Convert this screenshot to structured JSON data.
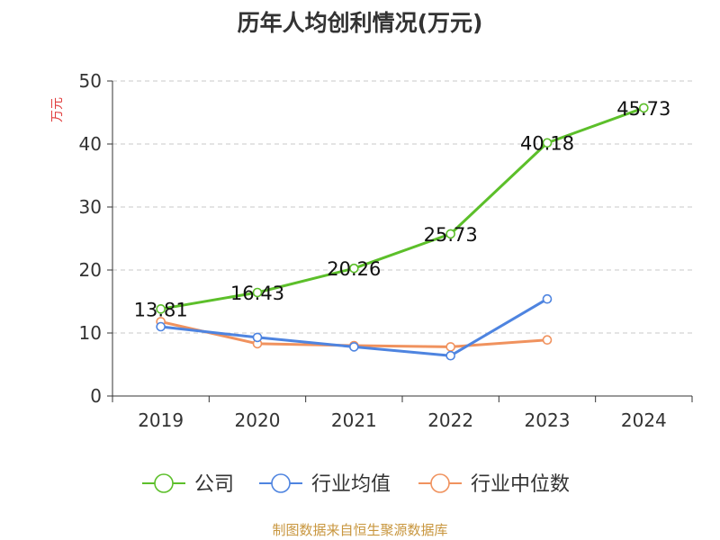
{
  "chart_data": {
    "type": "line",
    "title": "历年人均创利情况(万元)",
    "ylabel": "万元",
    "xlabel": "",
    "categories": [
      "2019",
      "2020",
      "2021",
      "2022",
      "2023",
      "2024"
    ],
    "ylim": [
      0,
      50
    ],
    "yticks": [
      "0",
      "10",
      "20",
      "30",
      "40",
      "50"
    ],
    "grid": true,
    "legend_position": "bottom",
    "series": [
      {
        "name": "公司",
        "color": "#5cbf2a",
        "values": [
          13.81,
          16.43,
          20.26,
          25.73,
          40.18,
          45.73
        ],
        "labels": [
          "13.81",
          "16.43",
          "20.26",
          "25.73",
          "40.18",
          "45.73"
        ]
      },
      {
        "name": "行业均值",
        "color": "#4e84e0",
        "values": [
          11.0,
          9.3,
          7.8,
          6.4,
          15.4,
          null
        ]
      },
      {
        "name": "行业中位数",
        "color": "#f0925e",
        "values": [
          11.8,
          8.3,
          8.0,
          7.8,
          8.9,
          null
        ]
      }
    ]
  },
  "footer": {
    "source": "制图数据来自恒生聚源数据库"
  }
}
